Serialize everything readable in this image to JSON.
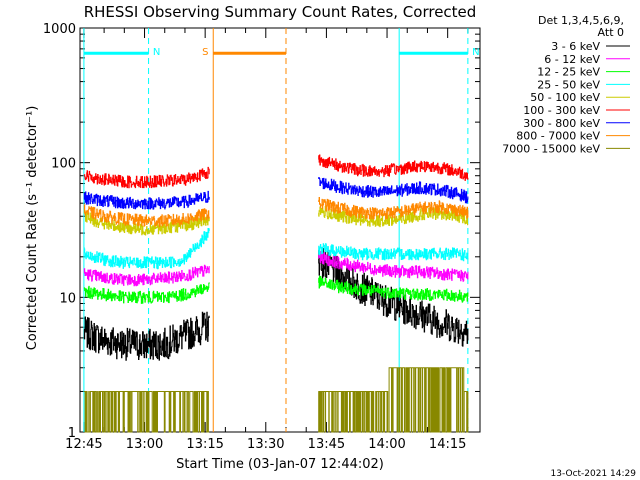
{
  "chart_data": {
    "type": "line",
    "title": "RHESSI Observing Summary Count Rates, Corrected",
    "xlabel": "Start Time (03-Jan-07 12:44:02)",
    "ylabel": "Corrected Count Rate (s⁻¹ detector⁻¹)",
    "y_scale": "log",
    "ylim": [
      1,
      1000
    ],
    "xlim": [
      "12:44:02",
      "14:23"
    ],
    "x_ticks": [
      "12:45",
      "13:00",
      "13:15",
      "13:30",
      "13:45",
      "14:00",
      "14:15"
    ],
    "y_ticks": [
      "1",
      "10",
      "100",
      "1000"
    ],
    "legend_header": [
      "Det 1,3,4,5,6,9,",
      "Att 0"
    ],
    "legend_position": "right",
    "grid": false,
    "series": [
      {
        "name": "3 - 6 keV",
        "color": "#000000",
        "x": [
          "12:45",
          "12:50",
          "12:55",
          "13:00",
          "13:05",
          "13:10",
          "13:16",
          "13:43",
          "13:48",
          "13:53",
          "13:58",
          "14:03",
          "14:08",
          "14:13",
          "14:18",
          "14:20"
        ],
        "values": [
          5.5,
          4.8,
          4.5,
          4.4,
          4.5,
          5.2,
          6.2,
          19,
          15,
          12,
          10,
          8.5,
          7.5,
          6.5,
          5.8,
          5.5
        ]
      },
      {
        "name": "6 - 12 keV",
        "color": "#ff00ff",
        "x": [
          "12:45",
          "12:50",
          "12:55",
          "13:00",
          "13:05",
          "13:10",
          "13:16",
          "13:43",
          "13:48",
          "13:53",
          "13:58",
          "14:03",
          "14:08",
          "14:13",
          "14:18",
          "14:20"
        ],
        "values": [
          15,
          14,
          13.5,
          13.5,
          13.8,
          14.5,
          16,
          20,
          18,
          17,
          16,
          15.5,
          15.5,
          15,
          14.5,
          14.5
        ]
      },
      {
        "name": "12 - 25 keV",
        "color": "#00ff00",
        "x": [
          "12:45",
          "12:50",
          "12:55",
          "13:00",
          "13:05",
          "13:10",
          "13:16",
          "13:43",
          "13:48",
          "13:53",
          "13:58",
          "14:03",
          "14:08",
          "14:13",
          "14:18",
          "14:20"
        ],
        "values": [
          11,
          10.5,
          10,
          10,
          10,
          10.5,
          12,
          13,
          12,
          11.5,
          11,
          10.8,
          10.5,
          10.5,
          10.2,
          10
        ]
      },
      {
        "name": "25 - 50 keV",
        "color": "#00ffff",
        "x": [
          "12:45",
          "12:50",
          "12:55",
          "13:00",
          "13:05",
          "13:10",
          "13:16",
          "13:43",
          "13:48",
          "13:53",
          "13:58",
          "14:03",
          "14:08",
          "14:13",
          "14:18",
          "14:20"
        ],
        "values": [
          21,
          19,
          18,
          18,
          18,
          19,
          30,
          23,
          22,
          21,
          21,
          21,
          21,
          21,
          21,
          20
        ]
      },
      {
        "name": "50 - 100 keV",
        "color": "#cccc00",
        "x": [
          "12:45",
          "12:50",
          "12:55",
          "13:00",
          "13:05",
          "13:10",
          "13:16",
          "13:43",
          "13:48",
          "13:53",
          "13:58",
          "14:03",
          "14:08",
          "14:13",
          "14:18",
          "14:20"
        ],
        "values": [
          40,
          35,
          33,
          32,
          33,
          34,
          38,
          44,
          40,
          38,
          37,
          38,
          41,
          42,
          40,
          38
        ]
      },
      {
        "name": "100 - 300 keV",
        "color": "#ff0000",
        "x": [
          "12:45",
          "12:50",
          "12:55",
          "13:00",
          "13:05",
          "13:10",
          "13:16",
          "13:43",
          "13:48",
          "13:53",
          "13:58",
          "14:03",
          "14:08",
          "14:13",
          "14:18",
          "14:20"
        ],
        "values": [
          80,
          75,
          72,
          72,
          73,
          75,
          85,
          105,
          95,
          88,
          86,
          90,
          95,
          92,
          85,
          80
        ]
      },
      {
        "name": "300 - 800 keV",
        "color": "#0000ff",
        "x": [
          "12:45",
          "12:50",
          "12:55",
          "13:00",
          "13:05",
          "13:10",
          "13:16",
          "13:43",
          "13:48",
          "13:53",
          "13:58",
          "14:03",
          "14:08",
          "14:13",
          "14:18",
          "14:20"
        ],
        "values": [
          55,
          52,
          50,
          50,
          50,
          51,
          56,
          72,
          66,
          62,
          60,
          62,
          65,
          63,
          58,
          55
        ]
      },
      {
        "name": "800 - 7000 keV",
        "color": "#ff8800",
        "x": [
          "12:45",
          "12:50",
          "12:55",
          "13:00",
          "13:05",
          "13:10",
          "13:16",
          "13:43",
          "13:48",
          "13:53",
          "13:58",
          "14:03",
          "14:08",
          "14:13",
          "14:18",
          "14:20"
        ],
        "values": [
          44,
          40,
          38,
          37,
          37,
          38,
          42,
          50,
          46,
          43,
          42,
          43,
          46,
          47,
          44,
          42
        ]
      },
      {
        "name": "7000 - 15000 keV",
        "color": "#888800",
        "x": [
          "12:45",
          "12:50",
          "12:55",
          "13:00",
          "13:05",
          "13:10",
          "13:16",
          "13:43",
          "13:48",
          "13:53",
          "13:58",
          "14:03",
          "14:08",
          "14:13",
          "14:18",
          "14:20"
        ],
        "values": [
          2,
          2,
          2,
          2,
          2,
          2,
          2,
          2,
          2,
          2,
          2,
          3,
          3,
          3,
          3,
          2
        ]
      }
    ],
    "markers": [
      {
        "label": "N",
        "color": "#00ffff",
        "start": "12:45",
        "end": "13:01"
      },
      {
        "label": "N",
        "color": "#00ffff",
        "start": "14:03",
        "end": "14:20"
      },
      {
        "label": "S",
        "color": "#ff8800",
        "start": "13:17",
        "end": "13:35"
      }
    ]
  },
  "footer": {
    "timestamp": "13-Oct-2021 14:29"
  }
}
